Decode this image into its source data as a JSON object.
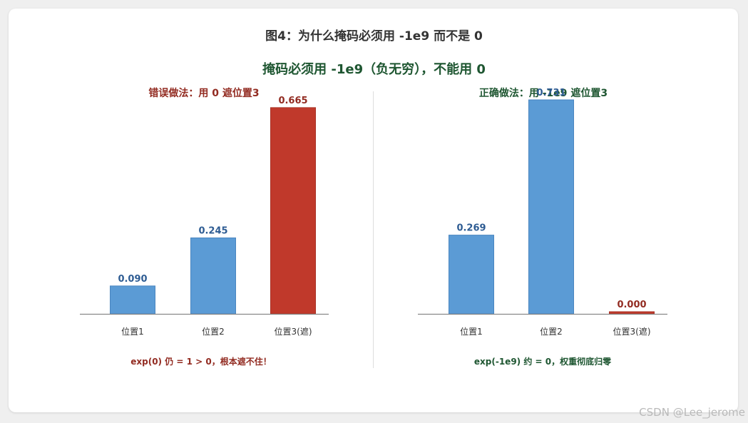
{
  "figure_title": "图4：为什么掩码必须用 -1e9 而不是 0",
  "main_title": "掩码必须用 -1e9（负无穷），不能用 0",
  "watermark": "CSDN @Lee_jerome",
  "colors": {
    "normal_bar": "#5b9bd5",
    "masked_bar": "#c0392b",
    "wrong_text": "#922b21",
    "right_text": "#1e5631",
    "value_normal": "#2e5c93",
    "value_masked": "#922b21"
  },
  "chart_data": [
    {
      "type": "bar",
      "title": "错误做法：用 0 遮位置3",
      "categories": [
        "位置1",
        "位置2",
        "位置3(遮)"
      ],
      "values": [
        0.09,
        0.245,
        0.665
      ],
      "value_labels": [
        "0.090",
        "0.245",
        "0.665"
      ],
      "masked_index": 2,
      "ylim": [
        0,
        0.69
      ],
      "note": "exp(0) 仍 = 1 > 0，根本遮不住！"
    },
    {
      "type": "bar",
      "title": "正确做法：用 -1e9 遮位置3",
      "categories": [
        "位置1",
        "位置2",
        "位置3(遮)"
      ],
      "values": [
        0.269,
        0.731,
        0.0
      ],
      "value_labels": [
        "0.269",
        "0.731",
        "0.000"
      ],
      "masked_index": 2,
      "ylim": [
        0,
        0.731
      ],
      "note": "exp(-1e9) 约 = 0，权重彻底归零"
    }
  ]
}
